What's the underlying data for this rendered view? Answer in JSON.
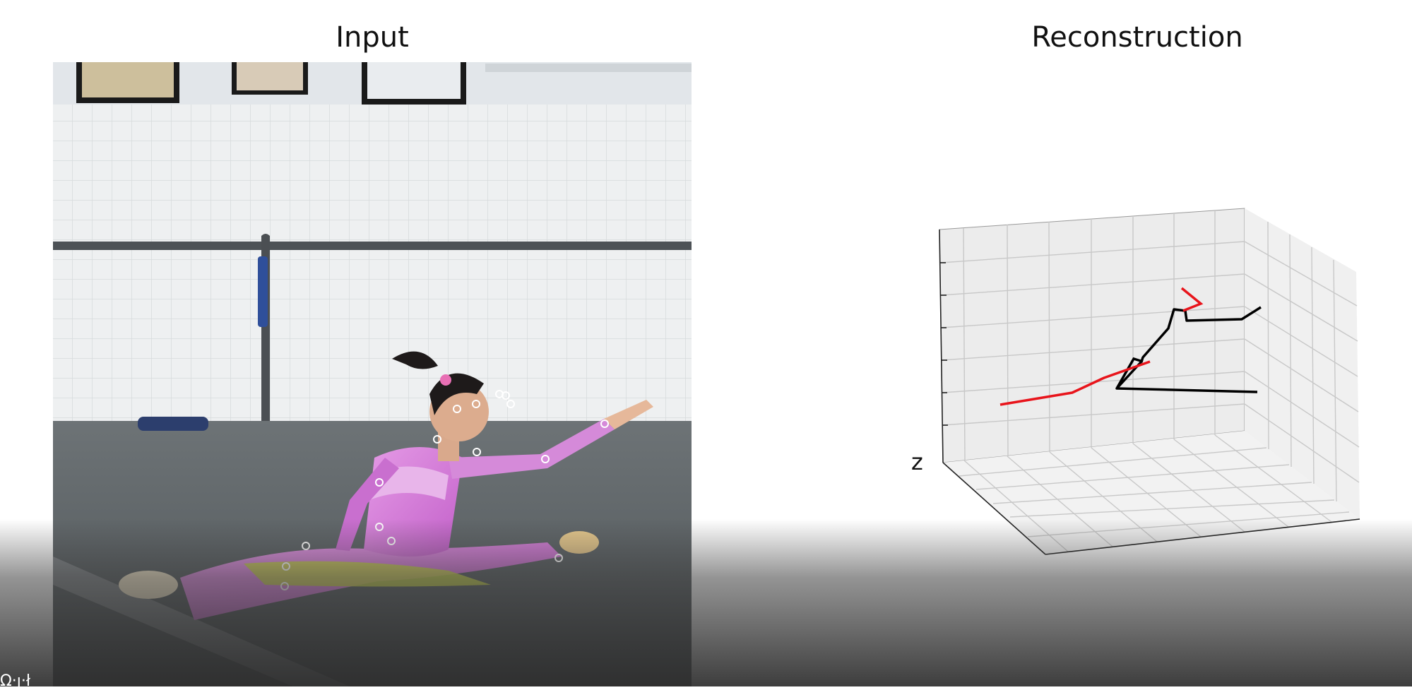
{
  "panels": {
    "input_title": "Input",
    "reconstruction_title": "Reconstruction"
  },
  "plot3d": {
    "z_axis_label": "z",
    "colors": {
      "left_chain": "#e8141b",
      "right_chain": "#000000",
      "grid": "#c8c8c8",
      "pane_back": "#ececec",
      "pane_floor": "#f2f2f2",
      "pane_side": "#f0f0f0"
    }
  },
  "keypoint_color": "#ffffff",
  "caption_fragment": "Ω·ȷ·ł"
}
